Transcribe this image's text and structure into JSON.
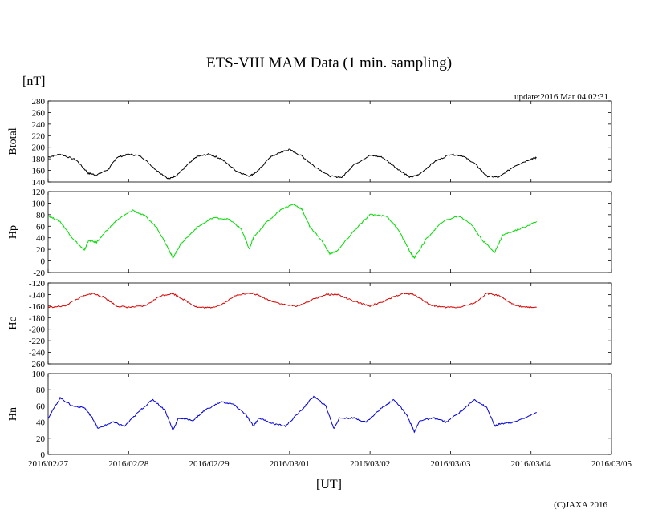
{
  "title": "ETS-VIII MAM Data (1 min. sampling)",
  "unit_label": "[nT]",
  "update": "update:2016 Mar 04 02:31",
  "xlabel": "[UT]",
  "copyright": "(C)JAXA 2016",
  "chart_data": [
    {
      "type": "line",
      "ylabel": "Btotal",
      "color": "#000000",
      "ylim": [
        140,
        280
      ],
      "yticks": [
        140,
        160,
        180,
        200,
        220,
        240,
        260,
        280
      ],
      "x": [
        0,
        0.15,
        0.35,
        0.5,
        0.6,
        0.75,
        0.85,
        1.0,
        1.15,
        1.35,
        1.5,
        1.6,
        1.75,
        1.85,
        2.0,
        2.15,
        2.35,
        2.5,
        2.6,
        2.75,
        2.9,
        3.0,
        3.15,
        3.3,
        3.5,
        3.65,
        3.8,
        4.0,
        4.15,
        4.35,
        4.5,
        4.6,
        4.8,
        5.0,
        5.15,
        5.3,
        5.45,
        5.6,
        5.8,
        6.0,
        6.07
      ],
      "y": [
        183,
        188,
        178,
        155,
        152,
        162,
        182,
        188,
        185,
        160,
        145,
        152,
        172,
        184,
        188,
        180,
        158,
        150,
        158,
        182,
        192,
        196,
        185,
        168,
        150,
        148,
        170,
        186,
        183,
        162,
        148,
        152,
        175,
        188,
        185,
        172,
        150,
        148,
        168,
        180,
        182
      ],
      "annotations": []
    },
    {
      "type": "line",
      "ylabel": "Hp",
      "color": "#00dd00",
      "ylim": [
        -20,
        120
      ],
      "yticks": [
        -20,
        0,
        20,
        40,
        60,
        80,
        100,
        120
      ],
      "x": [
        0,
        0.15,
        0.3,
        0.45,
        0.5,
        0.6,
        0.7,
        0.85,
        1.05,
        1.2,
        1.35,
        1.5,
        1.55,
        1.65,
        1.85,
        2.05,
        2.25,
        2.4,
        2.5,
        2.55,
        2.7,
        2.9,
        3.05,
        3.15,
        3.25,
        3.4,
        3.5,
        3.6,
        3.8,
        4.0,
        4.2,
        4.35,
        4.5,
        4.55,
        4.7,
        4.9,
        5.1,
        5.25,
        5.4,
        5.55,
        5.65,
        5.85,
        6.07
      ],
      "y": [
        78,
        68,
        40,
        18,
        35,
        32,
        48,
        70,
        88,
        78,
        58,
        20,
        5,
        30,
        58,
        75,
        72,
        55,
        20,
        40,
        65,
        90,
        98,
        90,
        60,
        35,
        12,
        18,
        52,
        80,
        78,
        55,
        15,
        5,
        38,
        68,
        78,
        65,
        35,
        15,
        45,
        55,
        68
      ],
      "annotations": []
    },
    {
      "type": "line",
      "ylabel": "Hc",
      "color": "#dd0000",
      "ylim": [
        -260,
        -120
      ],
      "yticks": [
        -260,
        -240,
        -220,
        -200,
        -180,
        -160,
        -140,
        -120
      ],
      "x": [
        0,
        0.2,
        0.4,
        0.55,
        0.7,
        0.85,
        1.0,
        1.2,
        1.4,
        1.55,
        1.7,
        1.85,
        2.0,
        2.15,
        2.35,
        2.55,
        2.75,
        2.95,
        3.1,
        3.3,
        3.45,
        3.6,
        3.8,
        4.0,
        4.2,
        4.4,
        4.55,
        4.75,
        4.9,
        5.1,
        5.3,
        5.45,
        5.6,
        5.75,
        5.9,
        6.07
      ],
      "y": [
        -162,
        -160,
        -145,
        -138,
        -145,
        -160,
        -162,
        -160,
        -142,
        -138,
        -150,
        -162,
        -163,
        -158,
        -140,
        -138,
        -150,
        -158,
        -160,
        -148,
        -140,
        -140,
        -152,
        -160,
        -150,
        -138,
        -140,
        -158,
        -162,
        -162,
        -155,
        -138,
        -142,
        -155,
        -162,
        -162
      ],
      "annotations": []
    },
    {
      "type": "line",
      "ylabel": "Hn",
      "color": "#0000dd",
      "ylim": [
        0,
        100
      ],
      "yticks": [
        0,
        20,
        40,
        60,
        80,
        100
      ],
      "x": [
        0,
        0.15,
        0.3,
        0.45,
        0.55,
        0.62,
        0.8,
        0.95,
        1.15,
        1.3,
        1.45,
        1.55,
        1.62,
        1.8,
        1.95,
        2.15,
        2.3,
        2.45,
        2.55,
        2.62,
        2.8,
        2.95,
        3.15,
        3.3,
        3.45,
        3.55,
        3.62,
        3.8,
        3.95,
        4.15,
        4.3,
        4.45,
        4.55,
        4.62,
        4.8,
        4.95,
        5.15,
        5.3,
        5.45,
        5.55,
        5.62,
        5.8,
        6.07
      ],
      "y": [
        45,
        70,
        60,
        58,
        45,
        32,
        40,
        35,
        55,
        68,
        55,
        30,
        45,
        42,
        55,
        65,
        62,
        50,
        35,
        45,
        38,
        35,
        55,
        72,
        60,
        32,
        45,
        45,
        40,
        58,
        68,
        50,
        28,
        42,
        45,
        40,
        55,
        68,
        58,
        35,
        38,
        40,
        52
      ],
      "annotations": []
    }
  ],
  "x_axis": {
    "xlim": [
      0,
      7
    ],
    "tick_labels": [
      "2016/02/27",
      "2016/02/28",
      "2016/02/29",
      "2016/03/01",
      "2016/03/02",
      "2016/03/03",
      "2016/03/04",
      "2016/03/05"
    ]
  }
}
